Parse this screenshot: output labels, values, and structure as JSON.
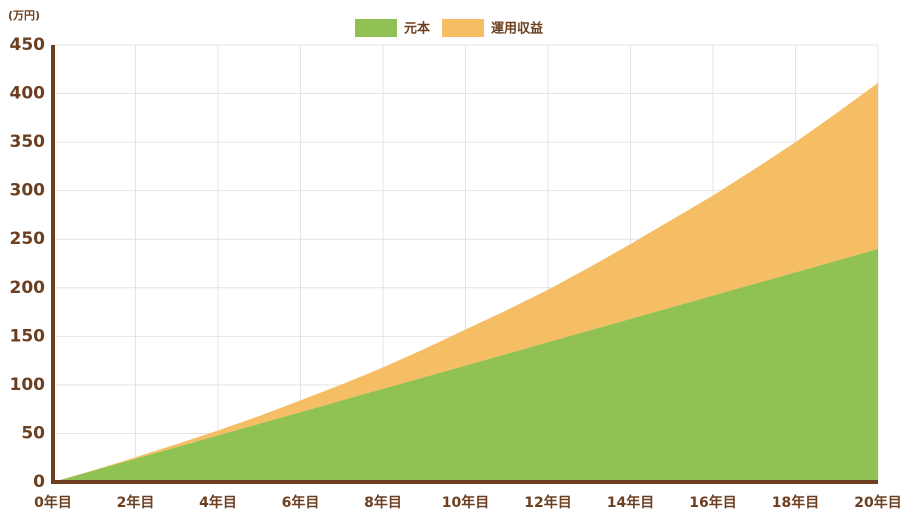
{
  "chart_data": {
    "type": "stacked-area",
    "y_unit_label": "(万円)",
    "categories": [
      "0年目",
      null,
      "2年目",
      null,
      "4年目",
      null,
      "6年目",
      null,
      "8年目",
      null,
      "10年目",
      null,
      "12年目",
      null,
      "14年目",
      null,
      "16年目",
      null,
      "18年目",
      null,
      "20年目"
    ],
    "series": [
      {
        "name": "元本",
        "color": "#8fc153",
        "values": [
          0,
          12,
          24,
          36,
          48,
          60,
          72,
          84,
          96,
          108,
          120,
          132,
          144,
          156,
          168,
          180,
          192,
          204,
          216,
          228,
          240
        ]
      },
      {
        "name": "運用収益",
        "color": "#f5be64",
        "values": [
          0,
          0.3,
          1.5,
          3,
          5,
          8,
          12,
          16.5,
          22,
          29,
          37,
          45,
          54,
          65,
          77,
          90,
          103,
          118,
          134,
          152,
          171
        ]
      }
    ],
    "ylim": [
      0,
      450
    ],
    "yticks": [
      0,
      50,
      100,
      150,
      200,
      250,
      300,
      350,
      400,
      450
    ],
    "grid": true,
    "legend": "top"
  }
}
